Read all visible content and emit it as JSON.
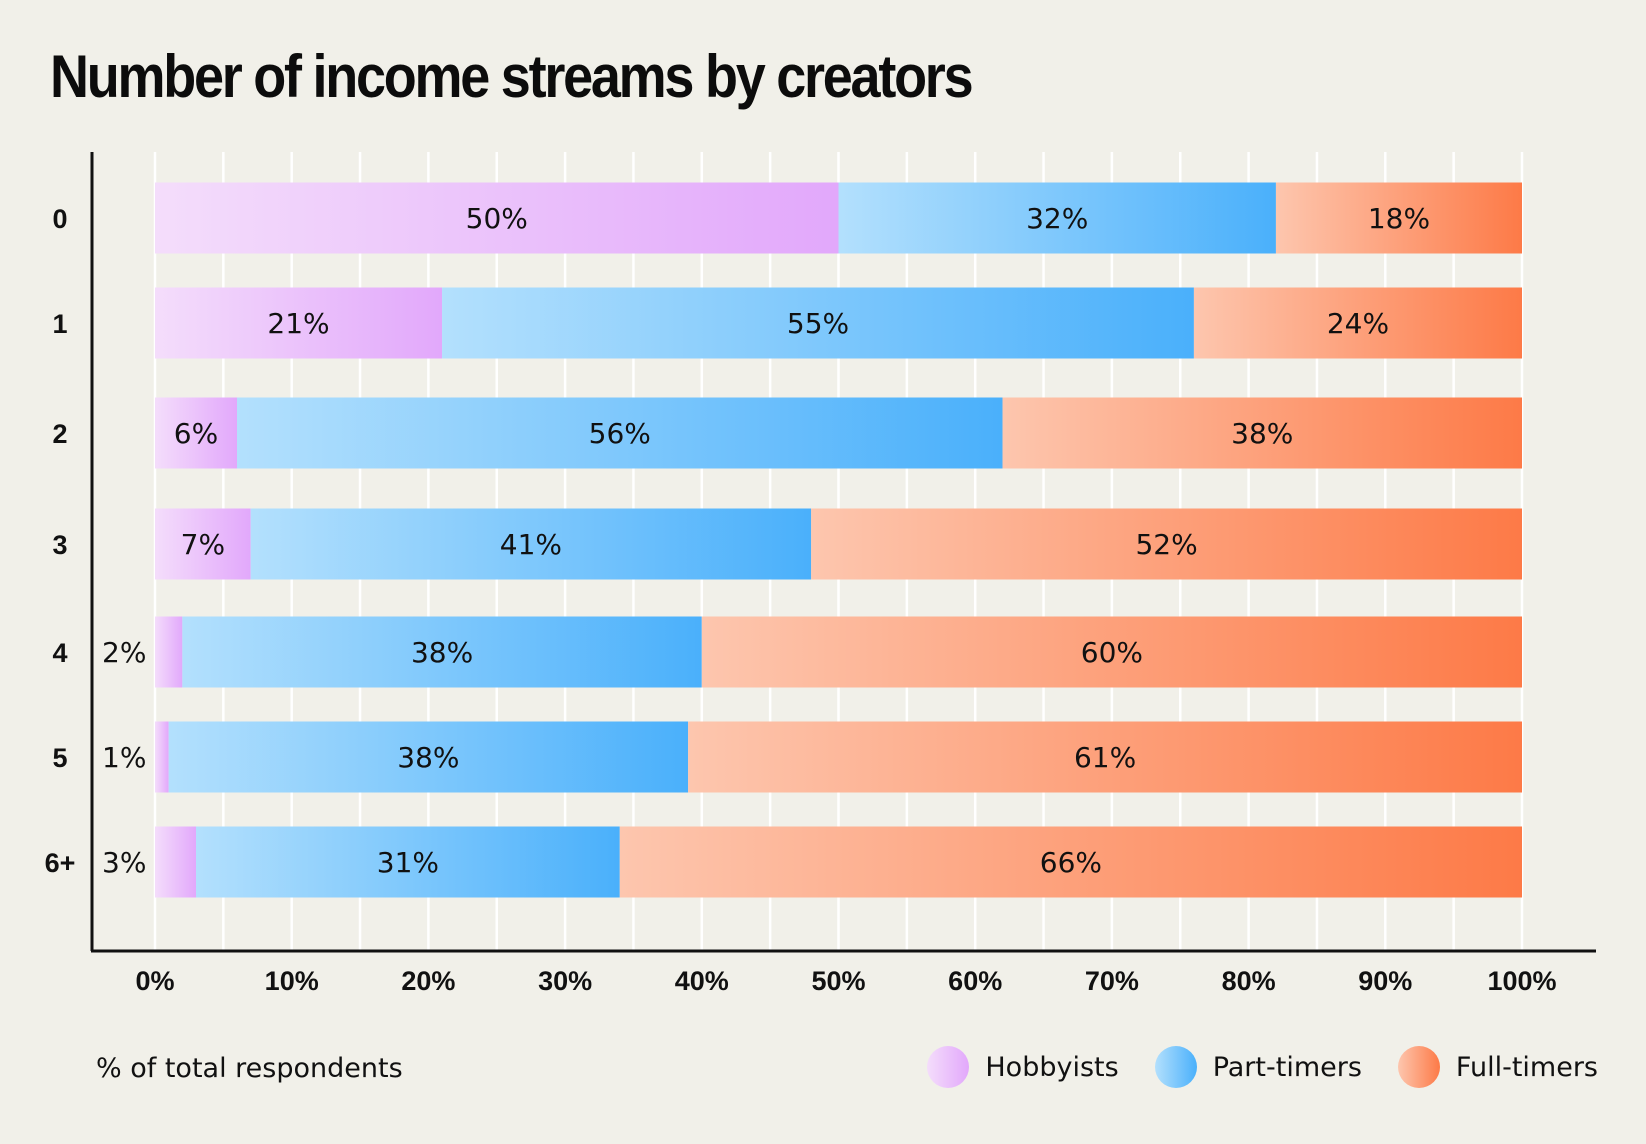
{
  "title": "Number of income streams by creators",
  "footer_note": "% of total respondents",
  "legend": [
    {
      "label": "Hobbyists"
    },
    {
      "label": "Part-timers"
    },
    {
      "label": "Full-timers"
    }
  ],
  "colors": {
    "Hobbyists": [
      "#f4ddfb",
      "#e2a8fb"
    ],
    "Part-timers": [
      "#b3e0fd",
      "#4ab0fb"
    ],
    "Full-timers": [
      "#fdc6ae",
      "#fd7a47"
    ],
    "axis": "#111111",
    "grid": "#ffffff"
  },
  "chart_data": {
    "type": "bar",
    "orientation": "horizontal",
    "stacked": true,
    "categories": [
      "0",
      "1",
      "2",
      "3",
      "4",
      "5",
      "6+"
    ],
    "series": [
      {
        "name": "Hobbyists",
        "values": [
          50,
          21,
          6,
          7,
          2,
          1,
          3
        ]
      },
      {
        "name": "Part-timers",
        "values": [
          32,
          55,
          56,
          41,
          38,
          38,
          31
        ]
      },
      {
        "name": "Full-timers",
        "values": [
          18,
          24,
          38,
          52,
          60,
          61,
          66
        ]
      }
    ],
    "data_labels": [
      [
        "50%",
        "32%",
        "18%"
      ],
      [
        "21%",
        "55%",
        "24%"
      ],
      [
        "6%",
        "56%",
        "38%"
      ],
      [
        "7%",
        "41%",
        "52%"
      ],
      [
        "2%",
        "38%",
        "60%"
      ],
      [
        "1%",
        "38%",
        "61%"
      ],
      [
        "3%",
        "31%",
        "66%"
      ]
    ],
    "x_ticks": [
      "0%",
      "10%",
      "20%",
      "30%",
      "40%",
      "50%",
      "60%",
      "70%",
      "80%",
      "90%",
      "100%"
    ],
    "xlim": [
      0,
      100
    ],
    "grid": true
  }
}
